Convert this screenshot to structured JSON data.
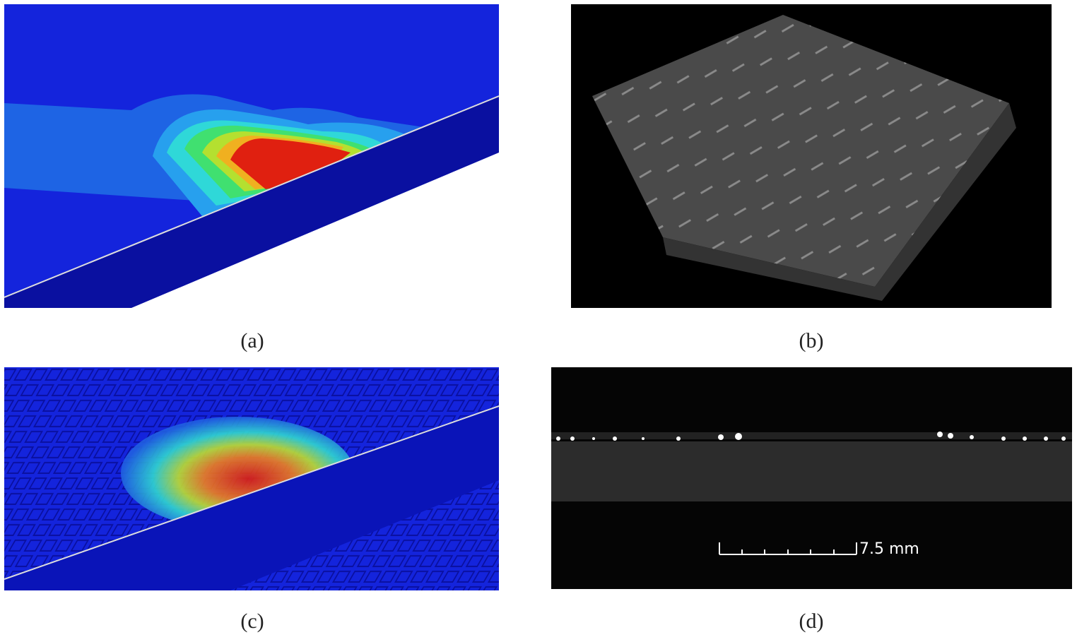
{
  "panels": [
    {
      "caption": "(a)"
    },
    {
      "caption": "(b)"
    },
    {
      "caption": "(c)"
    },
    {
      "caption": "(d)",
      "scale_bar": "7.5 mm"
    }
  ]
}
